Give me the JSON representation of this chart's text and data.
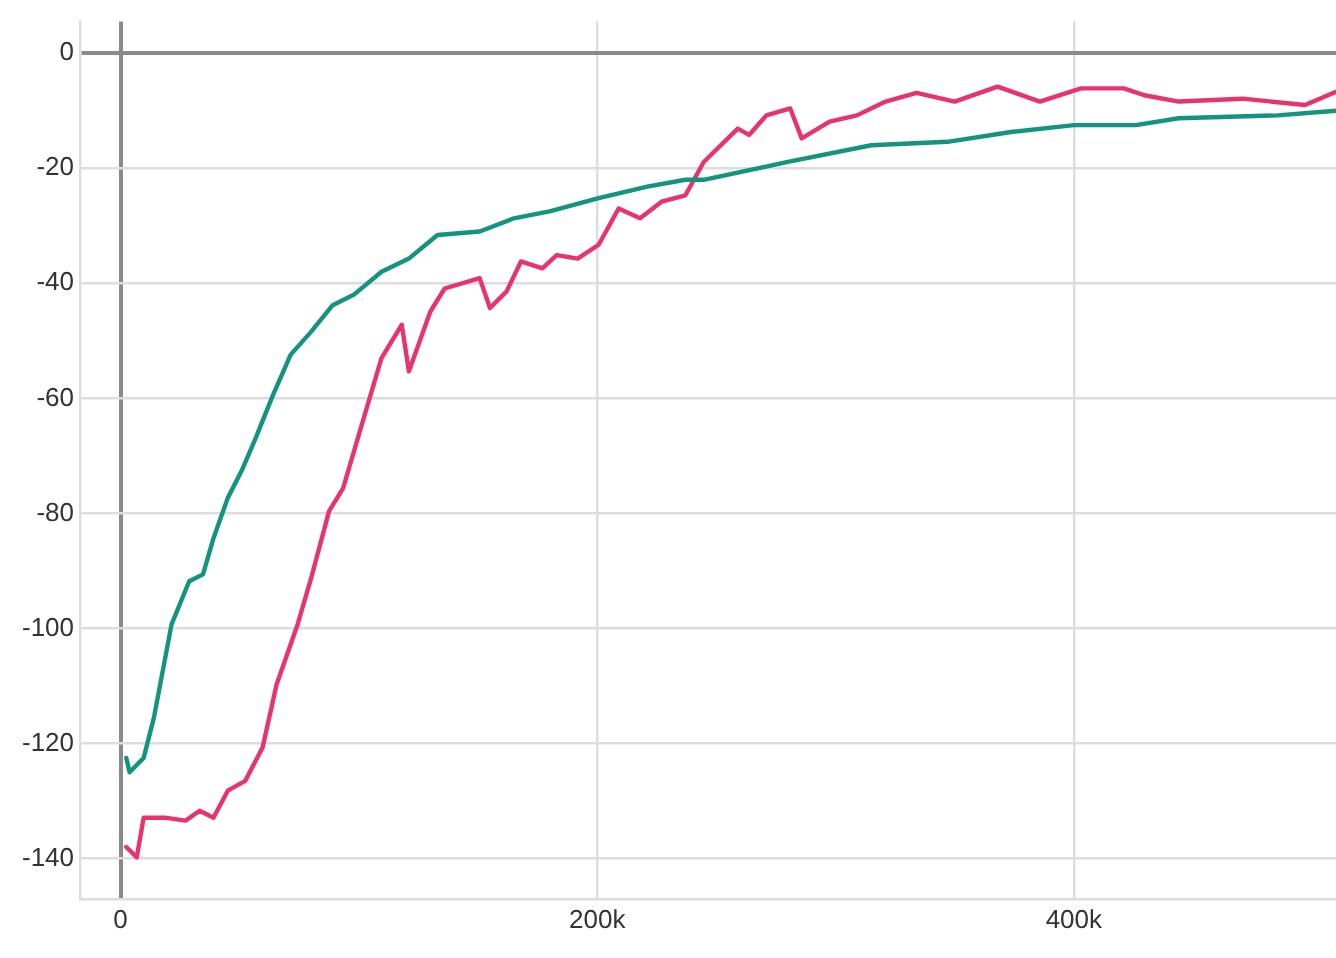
{
  "chart_data": {
    "type": "line",
    "xlim": [
      -17000,
      510000
    ],
    "ylim": [
      -147,
      5.5
    ],
    "xticks": [
      0,
      {
        "value": 200000,
        "label": "200k"
      },
      {
        "value": 400000,
        "label": "400k"
      }
    ],
    "yticks": [
      0,
      -20,
      -40,
      -60,
      -80,
      -100,
      -120,
      -140
    ],
    "grid": true,
    "legend": false,
    "marker": "none",
    "line_style": "solid",
    "series": [
      {
        "color": "#12947f",
        "x": [
          2400,
          3800,
          9700,
          14000,
          21400,
          28800,
          34600,
          39000,
          45000,
          50800,
          56700,
          64000,
          71400,
          80000,
          89000,
          97800,
          109500,
          121000,
          133000,
          150700,
          165000,
          180000,
          200600,
          221000,
          237000,
          244700,
          280000,
          315000,
          347000,
          373600,
          400000,
          426000,
          444000,
          485500,
          510000
        ],
        "values": [
          -122.5,
          -125,
          -122.5,
          -115.5,
          -99.3,
          -91.8,
          -90.6,
          -84.3,
          -77.3,
          -72.6,
          -66.9,
          -59.4,
          -52.4,
          -48.4,
          -43.8,
          -42,
          -38,
          -35.7,
          -31.6,
          -31,
          -28.7,
          -27.5,
          -25.2,
          -23.2,
          -22,
          -22,
          -18.9,
          -16,
          -15.4,
          -13.7,
          -12.5,
          -12.5,
          -11.3,
          -10.8,
          -10
        ]
      },
      {
        "color": "#e8336b",
        "x": [
          2400,
          6800,
          9700,
          18500,
          27300,
          33200,
          39000,
          45000,
          52300,
          59600,
          65500,
          74300,
          80000,
          87500,
          93400,
          103700,
          109500,
          118000,
          121000,
          130000,
          136000,
          150700,
          155000,
          162000,
          168000,
          177000,
          183000,
          191800,
          200600,
          209000,
          218000,
          227000,
          237000,
          244700,
          259000,
          263700,
          271000,
          281000,
          285800,
          297500,
          309000,
          321000,
          334000,
          350000,
          368000,
          385700,
          403000,
          421000,
          429600,
          444000,
          470800,
          497000,
          510000
        ],
        "values": [
          -138,
          -139.8,
          -132.9,
          -132.9,
          -133.4,
          -131.7,
          -132.9,
          -128.2,
          -126.5,
          -120.7,
          -109.7,
          -99.3,
          -91.2,
          -79.6,
          -75.6,
          -61.1,
          -53,
          -47.2,
          -55.3,
          -44.9,
          -40.9,
          -39.1,
          -44.3,
          -41.4,
          -36.2,
          -37.4,
          -35.1,
          -35.7,
          -33.3,
          -27,
          -28.7,
          -25.8,
          -24.7,
          -18.9,
          -13.1,
          -14.2,
          -10.8,
          -9.6,
          -14.8,
          -11.9,
          -10.8,
          -8.4,
          -6.9,
          -8.4,
          -5.8,
          -8.4,
          -6.1,
          -6.1,
          -7.3,
          -8.4,
          -7.9,
          -9,
          -6.7
        ]
      }
    ]
  }
}
